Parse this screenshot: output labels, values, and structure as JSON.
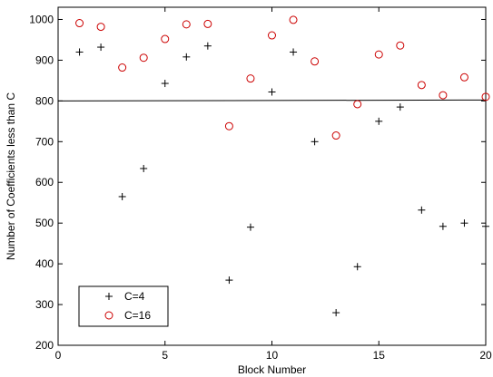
{
  "chart_data": {
    "type": "scatter",
    "xlabel": "Block Number",
    "ylabel": "Number of Coefficients less than C",
    "xlim": [
      0,
      20
    ],
    "ylim": [
      200,
      1030
    ],
    "xticks": [
      0,
      5,
      10,
      15,
      20
    ],
    "yticks": [
      200,
      300,
      400,
      500,
      600,
      700,
      800,
      900,
      1000
    ],
    "grid": false,
    "legend_position": "bottom-left",
    "series": [
      {
        "name": "C=4",
        "marker": "plus",
        "color": "#000000",
        "x": [
          1,
          2,
          3,
          4,
          5,
          6,
          7,
          8,
          9,
          10,
          11,
          12,
          13,
          14,
          15,
          16,
          17,
          18,
          19,
          20
        ],
        "y": [
          920,
          932,
          565,
          634,
          843,
          908,
          935,
          360,
          490,
          822,
          920,
          700,
          280,
          393,
          750,
          785,
          532,
          492,
          500,
          492
        ]
      },
      {
        "name": "C=16",
        "marker": "circle",
        "color": "#cc0000",
        "x": [
          1,
          2,
          3,
          4,
          5,
          6,
          7,
          8,
          9,
          10,
          11,
          12,
          13,
          14,
          15,
          16,
          17,
          18,
          19,
          20
        ],
        "y": [
          991,
          982,
          882,
          906,
          952,
          988,
          989,
          738,
          855,
          961,
          999,
          897,
          715,
          792,
          914,
          936,
          839,
          814,
          858,
          810
        ]
      }
    ],
    "reference_line": {
      "y": 800,
      "color": "#000000"
    }
  }
}
